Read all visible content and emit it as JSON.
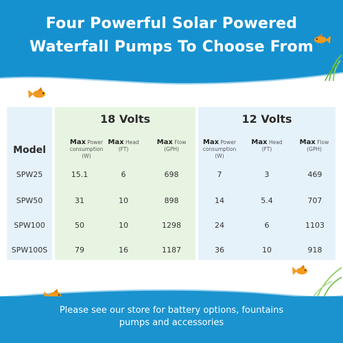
{
  "header": {
    "title_line1": "Four Powerful Solar Powered",
    "title_line2": "Waterfall Pumps To Choose From"
  },
  "table": {
    "model_header": "Model",
    "groups": [
      {
        "label": "18 Volts"
      },
      {
        "label": "12 Volts"
      }
    ],
    "column_headers": [
      {
        "bold": "Max",
        "rest": "Power",
        "line2": "consumption",
        "line3": "(W)"
      },
      {
        "bold": "Max",
        "rest": "Head",
        "line2": "(FT)",
        "line3": ""
      },
      {
        "bold": "Max",
        "rest": "Flow",
        "line2": "(GPH)",
        "line3": ""
      }
    ],
    "rows": [
      {
        "model": "SPW25",
        "v18": [
          "15.1",
          "6",
          "698"
        ],
        "v12": [
          "7",
          "3",
          "469"
        ]
      },
      {
        "model": "SPW50",
        "v18": [
          "31",
          "10",
          "898"
        ],
        "v12": [
          "14",
          "5.4",
          "707"
        ]
      },
      {
        "model": "SPW100",
        "v18": [
          "50",
          "10",
          "1298"
        ],
        "v12": [
          "24",
          "6",
          "1103"
        ]
      },
      {
        "model": "SPW100S",
        "v18": [
          "79",
          "16",
          "1187"
        ],
        "v12": [
          "36",
          "10",
          "918"
        ]
      }
    ]
  },
  "footer": {
    "line1": "Please see our store for battery options, fountains",
    "line2": "pumps and accessories"
  },
  "colors": {
    "banner": "#1691cf",
    "panel_green": "#e8f4e2",
    "panel_blue": "#e6f2fa",
    "fish": "#f29a1f"
  },
  "icons": [
    "goldfish-icon",
    "reed-grass-decoration"
  ]
}
